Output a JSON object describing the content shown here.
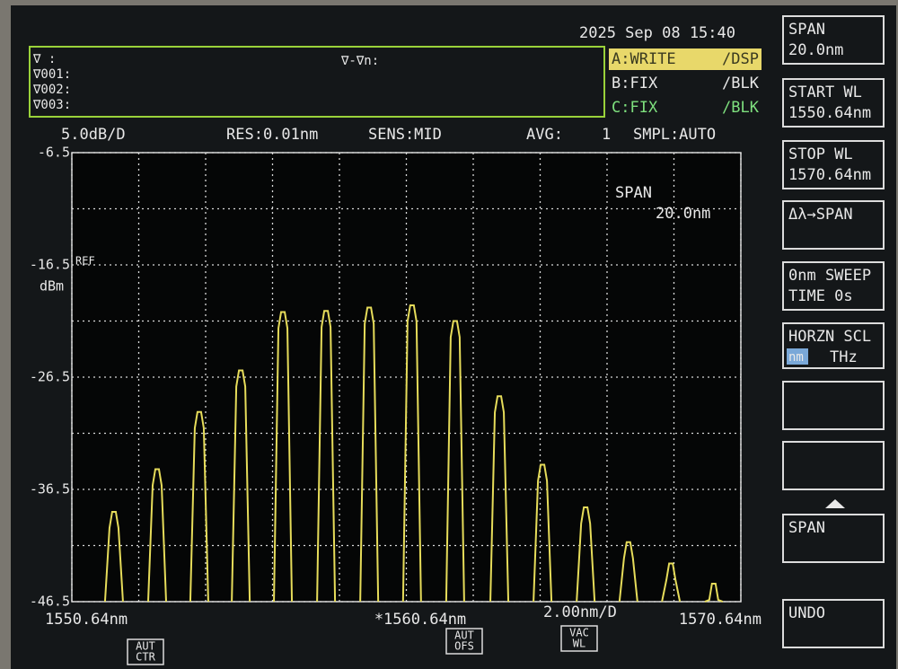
{
  "date": "2025 Sep 08 15:40",
  "markers": [
    "∇      :",
    "∇001:",
    "∇002:",
    "∇003:"
  ],
  "marker_delta": "∇-∇n:",
  "traces": [
    {
      "label": "A:WRITE",
      "mode": "/DSP",
      "color": "#d8d860",
      "highlight": true
    },
    {
      "label": "B:FIX",
      "mode": "/BLK",
      "color": "#e8e8e8",
      "highlight": false
    },
    {
      "label": "C:FIX",
      "mode": "/BLK",
      "color": "#7ee07e",
      "highlight": false
    }
  ],
  "status": {
    "scale": "5.0dB/D",
    "res": "RES:0.01nm",
    "sens": "SENS:MID",
    "avg_label": "AVG:",
    "avg_value": "1",
    "smpl": "SMPL:AUTO"
  },
  "chart_data": {
    "type": "peaks",
    "y_ref_label": "REF",
    "y_unit": "dBm",
    "annotations": [
      "SPAN",
      "20.0nm"
    ],
    "xlim": [
      1550.64,
      1570.64
    ],
    "ylim": [
      -46.5,
      -6.5
    ],
    "xticks": [
      {
        "value": 1550.64,
        "label": "1550.64nm"
      },
      {
        "value": 1560.64,
        "label": "*1560.64nm"
      },
      {
        "value": 1570.64,
        "label": "1570.64nm"
      }
    ],
    "x_scale_label": "2.00nm/D",
    "yticks": [
      -6.5,
      -16.5,
      -26.5,
      -36.5,
      -46.5
    ],
    "xgrid": [
      1550.64,
      1552.64,
      1554.64,
      1556.64,
      1558.64,
      1560.64,
      1562.64,
      1564.64,
      1566.64,
      1568.64,
      1570.64
    ],
    "ygrid": [
      -6.5,
      -11.5,
      -16.5,
      -21.5,
      -26.5,
      -31.5,
      -36.5,
      -41.5,
      -46.5
    ],
    "grid": true,
    "color": "#e6dc5a",
    "x": [
      1551.9,
      1553.19,
      1554.45,
      1555.69,
      1556.95,
      1558.24,
      1559.53,
      1560.81,
      1562.1,
      1563.42,
      1564.71,
      1566.0,
      1567.28,
      1568.55,
      1569.83
    ],
    "values": [
      -38.5,
      -34.7,
      -29.6,
      -25.9,
      -20.7,
      -20.6,
      -20.3,
      -20.1,
      -21.5,
      -28.2,
      -34.3,
      -38.1,
      -41.2,
      -43.1,
      -44.9
    ]
  },
  "softkeys": [
    {
      "lines": [
        "SPAN",
        "20.0nm"
      ]
    },
    {
      "lines": [
        "START WL",
        "1550.64nm"
      ]
    },
    {
      "lines": [
        "STOP WL",
        "1570.64nm"
      ]
    },
    {
      "lines": [
        "Δλ→SPAN"
      ]
    },
    {
      "lines": [
        "0nm SWEEP",
        "TIME  0s"
      ]
    },
    {
      "lines": [
        "HORZN SCL"
      ],
      "options": [
        "nm",
        "THz"
      ]
    },
    {
      "lines": []
    },
    {
      "lines": []
    },
    {
      "lines": [
        "SPAN"
      ]
    },
    {
      "lines": [
        "UNDO"
      ]
    }
  ],
  "buttons": [
    {
      "lines": [
        "AUT",
        "CTR"
      ]
    },
    {
      "lines": [
        "AUT",
        "OFS"
      ]
    },
    {
      "lines": [
        "VAC",
        "WL"
      ]
    }
  ]
}
